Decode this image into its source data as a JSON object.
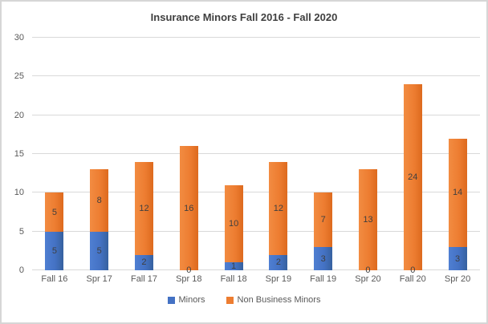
{
  "chart_data": {
    "type": "bar",
    "stacked": true,
    "title": "Insurance Minors Fall 2016 - Fall 2020",
    "categories": [
      "Fall 16",
      "Spr 17",
      "Fall 17",
      "Spr 18",
      "Fall 18",
      "Spr 19",
      "Fall 19",
      "Spr 20",
      "Fall 20",
      "Spr 20"
    ],
    "series": [
      {
        "name": "Minors",
        "color": "#4472C4",
        "values": [
          5,
          5,
          2,
          0,
          1,
          2,
          3,
          0,
          0,
          3
        ]
      },
      {
        "name": "Non Business Minors",
        "color": "#ED7D31",
        "values": [
          5,
          8,
          12,
          16,
          10,
          12,
          7,
          13,
          24,
          14
        ]
      }
    ],
    "totals": [
      10,
      13,
      14,
      16,
      11,
      14,
      10,
      13,
      24,
      17
    ],
    "ylim": [
      0,
      30
    ],
    "yticks": [
      0,
      5,
      10,
      15,
      20,
      25,
      30
    ],
    "grid": true,
    "data_labels": true,
    "legend_position": "bottom",
    "colors": {
      "gridline": "#d9d9d9",
      "axis_text": "#595959",
      "title_text": "#3f3f3f",
      "label_text": "#3f3f3f",
      "background": "#ffffff"
    }
  }
}
